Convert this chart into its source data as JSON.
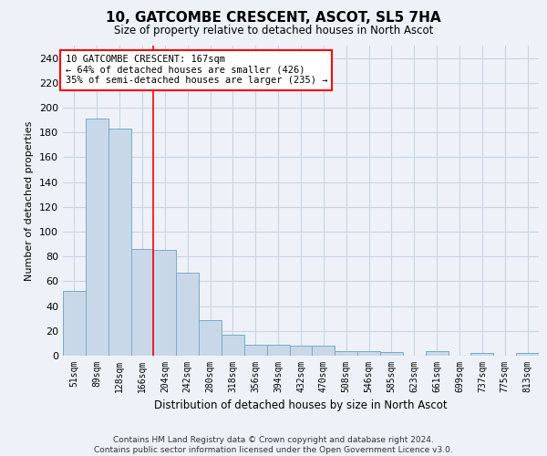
{
  "title": "10, GATCOMBE CRESCENT, ASCOT, SL5 7HA",
  "subtitle": "Size of property relative to detached houses in North Ascot",
  "xlabel": "Distribution of detached houses by size in North Ascot",
  "ylabel": "Number of detached properties",
  "categories": [
    "51sqm",
    "89sqm",
    "128sqm",
    "166sqm",
    "204sqm",
    "242sqm",
    "280sqm",
    "318sqm",
    "356sqm",
    "394sqm",
    "432sqm",
    "470sqm",
    "508sqm",
    "546sqm",
    "585sqm",
    "623sqm",
    "661sqm",
    "699sqm",
    "737sqm",
    "775sqm",
    "813sqm"
  ],
  "values": [
    52,
    191,
    183,
    86,
    85,
    67,
    29,
    17,
    9,
    9,
    8,
    8,
    4,
    4,
    3,
    0,
    4,
    0,
    2,
    0,
    2
  ],
  "bar_color": "#c8d8e8",
  "bar_edge_color": "#7aaac8",
  "grid_color": "#c8d4e4",
  "background_color": "#eef2f8",
  "red_line_x": 3.5,
  "annotation_text": "10 GATCOMBE CRESCENT: 167sqm\n← 64% of detached houses are smaller (426)\n35% of semi-detached houses are larger (235) →",
  "annotation_box_color": "white",
  "annotation_box_edge_color": "red",
  "footer": "Contains HM Land Registry data © Crown copyright and database right 2024.\nContains public sector information licensed under the Open Government Licence v3.0.",
  "ylim": [
    0,
    250
  ],
  "yticks": [
    0,
    20,
    40,
    60,
    80,
    100,
    120,
    140,
    160,
    180,
    200,
    220,
    240
  ]
}
